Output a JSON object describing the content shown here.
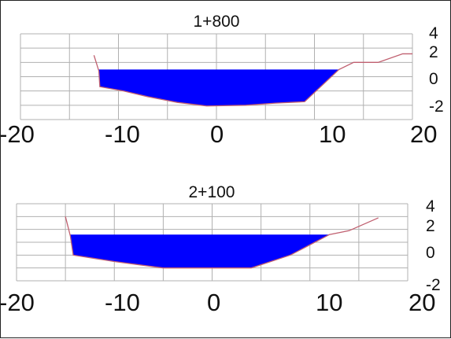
{
  "chart_data": [
    {
      "type": "area",
      "title": "1+800",
      "xlim": [
        -20,
        20
      ],
      "ylim": [
        -2,
        4
      ],
      "x_ticks": [
        "-20",
        "-10",
        "0",
        "10",
        "20"
      ],
      "y_ticks": [
        "4",
        "2",
        "0",
        "-2"
      ],
      "grid": true,
      "colors": {
        "water": "#0000ff",
        "ground": "#c06070",
        "grid": "#b0b0b0"
      },
      "ground_profile": [
        [
          -12.5,
          2.5
        ],
        [
          -12.0,
          1.4
        ],
        [
          -11.9,
          0.3
        ],
        [
          -9.5,
          0.0
        ],
        [
          -7.0,
          -0.4
        ],
        [
          -4.0,
          -0.8
        ],
        [
          -1.0,
          -1.05
        ],
        [
          3.0,
          -1.0
        ],
        [
          6.0,
          -0.85
        ],
        [
          9.0,
          -0.75
        ],
        [
          12.5,
          1.5
        ],
        [
          14.0,
          2.0
        ],
        [
          16.5,
          2.0
        ],
        [
          19.0,
          2.6
        ],
        [
          20.0,
          2.6
        ]
      ],
      "water_level": 1.5
    },
    {
      "type": "area",
      "title": "2+100",
      "xlim": [
        -20,
        20
      ],
      "ylim": [
        -2,
        4
      ],
      "x_ticks": [
        "-20",
        "-10",
        "0",
        "10",
        "20"
      ],
      "y_ticks": [
        "4",
        "2",
        "0",
        "-2"
      ],
      "grid": true,
      "colors": {
        "water": "#0000ff",
        "ground": "#c06070",
        "grid": "#b0b0b0"
      },
      "ground_profile": [
        [
          -15.0,
          3.0
        ],
        [
          -14.5,
          1.5
        ],
        [
          -14.2,
          0.0
        ],
        [
          -10.0,
          -0.5
        ],
        [
          -5.0,
          -1.0
        ],
        [
          0.0,
          -1.0
        ],
        [
          4.0,
          -1.0
        ],
        [
          8.0,
          0.0
        ],
        [
          10.5,
          1.0
        ],
        [
          12.0,
          1.6
        ],
        [
          14.0,
          1.9
        ],
        [
          17.0,
          2.9
        ]
      ],
      "water_level": 1.6
    }
  ]
}
